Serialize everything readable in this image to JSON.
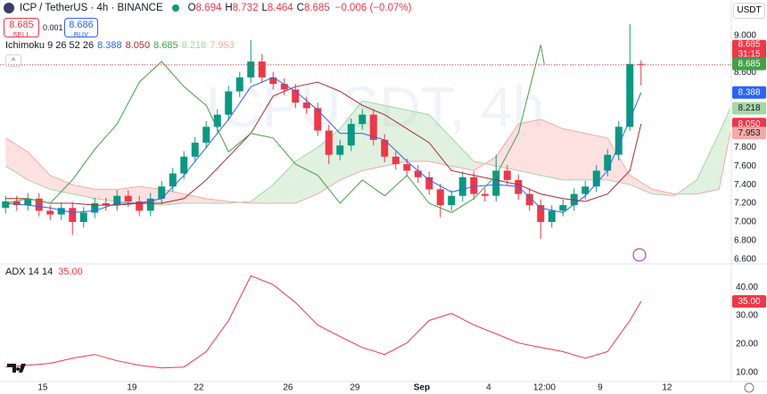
{
  "header": {
    "symbol": "ICP / TetherUS · 4h · BINANCE",
    "ohlc": [
      [
        "O",
        "8.694"
      ],
      [
        "H",
        "8.732"
      ],
      [
        "L",
        "8.464"
      ],
      [
        "C",
        "8.685"
      ]
    ],
    "change": "−0.006 (−0.07%)",
    "sell": {
      "price": "8.685",
      "label": "SELL"
    },
    "spread": "0.001",
    "buy": {
      "price": "8.686",
      "label": "BUY"
    },
    "currency": "USDT"
  },
  "chart_data": {
    "type": "candlestick",
    "watermark": "ICPUSDT, 4h",
    "up_color": "#089981",
    "down_color": "#f23645",
    "countdown": "31:15",
    "x": [
      -10,
      -7,
      -4,
      -1,
      2,
      5,
      8,
      11,
      14,
      17,
      20,
      23,
      26,
      29,
      32,
      35,
      38,
      41,
      44,
      47,
      50,
      53,
      56,
      59,
      62,
      65,
      68,
      71,
      74,
      77,
      80,
      83,
      86,
      89,
      92,
      95,
      98,
      101,
      104,
      107,
      110,
      113,
      116,
      119,
      122,
      125,
      128,
      131,
      134,
      137,
      140,
      143,
      146,
      149,
      152,
      155,
      158,
      161
    ],
    "open": [
      7.15,
      7.22,
      7.18,
      7.25,
      7.12,
      7.08,
      7.15,
      7.0,
      7.1,
      7.2,
      7.18,
      7.28,
      7.22,
      7.12,
      7.25,
      7.38,
      7.52,
      7.7,
      7.85,
      8.02,
      8.15,
      8.4,
      8.55,
      8.72,
      8.55,
      8.48,
      8.42,
      8.28,
      8.22,
      7.98,
      7.72,
      7.82,
      8.05,
      8.15,
      7.88,
      7.7,
      7.62,
      7.55,
      7.48,
      7.35,
      7.18,
      7.28,
      7.48,
      7.3,
      7.28,
      7.55,
      7.45,
      7.3,
      7.18,
      7.0,
      7.12,
      7.18,
      7.3,
      7.38,
      7.55,
      7.72,
      8.02,
      8.694
    ],
    "high": [
      7.28,
      7.28,
      7.31,
      7.31,
      7.18,
      7.21,
      7.21,
      7.16,
      7.26,
      7.26,
      7.34,
      7.34,
      7.28,
      7.31,
      7.44,
      7.58,
      7.76,
      7.91,
      8.08,
      8.21,
      8.46,
      8.61,
      8.95,
      8.8,
      8.61,
      8.54,
      8.48,
      8.34,
      8.28,
      8.04,
      7.88,
      8.11,
      8.21,
      8.21,
      7.94,
      7.76,
      7.68,
      7.61,
      7.54,
      7.41,
      7.34,
      7.54,
      7.54,
      7.36,
      7.72,
      7.61,
      7.51,
      7.36,
      7.24,
      7.18,
      7.24,
      7.36,
      7.44,
      7.61,
      7.78,
      8.08,
      9.12,
      8.732
    ],
    "low": [
      7.09,
      7.12,
      7.12,
      7.06,
      7.02,
      7.02,
      6.86,
      6.94,
      7.04,
      7.12,
      7.12,
      7.16,
      7.06,
      7.06,
      7.19,
      7.32,
      7.46,
      7.64,
      7.79,
      7.96,
      8.09,
      8.34,
      8.49,
      8.49,
      8.42,
      8.36,
      8.22,
      8.16,
      7.92,
      7.62,
      7.66,
      7.76,
      7.99,
      7.82,
      7.64,
      7.56,
      7.49,
      7.42,
      7.29,
      7.05,
      7.12,
      7.22,
      7.24,
      7.22,
      7.22,
      7.39,
      7.24,
      7.12,
      6.82,
      6.94,
      7.06,
      7.12,
      7.24,
      7.32,
      7.49,
      7.66,
      7.98,
      8.464
    ],
    "close": [
      7.22,
      7.18,
      7.25,
      7.12,
      7.08,
      7.15,
      7.0,
      7.1,
      7.2,
      7.18,
      7.28,
      7.22,
      7.12,
      7.25,
      7.38,
      7.52,
      7.7,
      7.85,
      8.02,
      8.15,
      8.4,
      8.55,
      8.72,
      8.55,
      8.48,
      8.42,
      8.28,
      8.22,
      7.98,
      7.72,
      7.82,
      8.05,
      8.15,
      7.88,
      7.7,
      7.62,
      7.55,
      7.48,
      7.35,
      7.18,
      7.28,
      7.48,
      7.3,
      7.28,
      7.55,
      7.45,
      7.3,
      7.18,
      7.0,
      7.12,
      7.18,
      7.3,
      7.38,
      7.55,
      7.72,
      8.02,
      8.694,
      8.685
    ],
    "xlim": [
      -11.5,
      185.3
    ],
    "xticks": [
      {
        "value": 0,
        "label": "15"
      },
      {
        "value": 24,
        "label": "19"
      },
      {
        "value": 42,
        "label": "22"
      },
      {
        "value": 66,
        "label": "26"
      },
      {
        "value": 84,
        "label": "29"
      },
      {
        "value": 102,
        "label": "Sep"
      },
      {
        "value": 120,
        "label": "4"
      },
      {
        "value": 135,
        "label": "12:00"
      },
      {
        "value": 150,
        "label": "9"
      },
      {
        "value": 168,
        "label": "12"
      }
    ],
    "ylim": [
      6.56,
      9.38
    ],
    "yticks": [
      {
        "value": 6.6,
        "label": "6.600"
      },
      {
        "value": 6.8,
        "label": "6.800"
      },
      {
        "value": 7.0,
        "label": "7.000"
      },
      {
        "value": 7.2,
        "label": "7.200"
      },
      {
        "value": 7.4,
        "label": "7.400"
      },
      {
        "value": 7.6,
        "label": "7.600"
      },
      {
        "value": 7.8,
        "label": "7.800"
      },
      {
        "value": 8.0,
        "label": "8.000"
      },
      {
        "value": 8.2,
        "label": "8.200"
      },
      {
        "value": 8.4,
        "label": "8.400"
      },
      {
        "value": 8.6,
        "label": "8.600"
      },
      {
        "value": 8.8,
        "label": "8.800"
      },
      {
        "value": 9.0,
        "label": "9.000"
      }
    ],
    "ichimoku": {
      "label": "Ichimoku 9 26 52 26",
      "lines": [
        {
          "color": "#2962ff",
          "label": "8.388",
          "x": [
            -10,
            -4,
            2,
            8,
            14,
            20,
            26,
            32,
            38,
            44,
            50,
            56,
            62,
            68,
            74,
            80,
            86,
            92,
            98,
            104,
            110,
            116,
            122,
            128,
            134,
            140,
            146,
            152,
            158,
            161
          ],
          "values": [
            7.2,
            7.18,
            7.15,
            7.1,
            7.12,
            7.2,
            7.2,
            7.25,
            7.5,
            7.8,
            8.1,
            8.45,
            8.55,
            8.4,
            8.2,
            7.95,
            7.95,
            7.88,
            7.65,
            7.45,
            7.32,
            7.38,
            7.4,
            7.38,
            7.15,
            7.1,
            7.28,
            7.55,
            8.1,
            8.388
          ]
        },
        {
          "color": "#b22833",
          "label": "8.050",
          "x": [
            -10,
            -4,
            2,
            8,
            14,
            20,
            26,
            32,
            38,
            44,
            50,
            56,
            62,
            68,
            74,
            80,
            86,
            92,
            98,
            104,
            110,
            116,
            122,
            128,
            134,
            140,
            146,
            152,
            158,
            161
          ],
          "values": [
            7.25,
            7.25,
            7.2,
            7.2,
            7.18,
            7.18,
            7.2,
            7.2,
            7.25,
            7.45,
            7.7,
            7.95,
            8.35,
            8.45,
            8.5,
            8.4,
            8.25,
            8.15,
            8.0,
            7.85,
            7.55,
            7.5,
            7.45,
            7.4,
            7.3,
            7.25,
            7.22,
            7.3,
            7.55,
            8.05
          ]
        },
        {
          "color": "#43a047",
          "label": "8.685",
          "x": [
            -10,
            -4,
            2,
            8,
            14,
            20,
            26,
            32,
            38,
            44,
            50,
            56,
            62,
            68,
            74,
            80,
            86,
            92,
            98,
            104,
            110,
            116,
            122,
            128,
            134,
            135
          ],
          "values": [
            7.2,
            7.25,
            7.2,
            7.45,
            7.78,
            8.05,
            8.5,
            8.72,
            8.45,
            8.25,
            7.75,
            7.95,
            7.9,
            7.62,
            7.5,
            7.2,
            7.45,
            7.28,
            7.5,
            7.2,
            7.1,
            7.25,
            7.5,
            7.95,
            8.9,
            8.685
          ]
        }
      ],
      "cloud": {
        "a_color": "#a5d6a7",
        "b_color": "#f7a9a7",
        "a_label": "8.218",
        "b_label": "7.953",
        "x": [
          -10,
          -4,
          2,
          8,
          14,
          20,
          26,
          32,
          38,
          44,
          50,
          56,
          62,
          68,
          74,
          80,
          86,
          92,
          98,
          104,
          110,
          116,
          122,
          128,
          134,
          140,
          146,
          152,
          158,
          164,
          170,
          176,
          182,
          185
        ],
        "span_a": [
          7.6,
          7.45,
          7.35,
          7.3,
          7.25,
          7.22,
          7.2,
          7.18,
          7.2,
          7.2,
          7.2,
          7.22,
          7.4,
          7.65,
          7.8,
          8.0,
          8.3,
          8.25,
          8.2,
          8.15,
          7.9,
          7.65,
          7.6,
          7.55,
          7.5,
          7.45,
          7.45,
          7.45,
          7.4,
          7.3,
          7.28,
          7.45,
          7.95,
          8.218
        ],
        "span_b": [
          7.9,
          7.75,
          7.5,
          7.4,
          7.35,
          7.35,
          7.38,
          7.35,
          7.3,
          7.25,
          7.22,
          7.2,
          7.2,
          7.2,
          7.3,
          7.45,
          7.55,
          7.6,
          7.65,
          7.65,
          7.6,
          7.55,
          7.7,
          8.05,
          8.1,
          8.0,
          7.95,
          7.9,
          7.5,
          7.35,
          7.3,
          7.3,
          7.35,
          7.953
        ]
      }
    },
    "adx": {
      "label": "ADX 14 14",
      "value_label": "35.00",
      "color": "#f23645",
      "ylim": [
        6.8,
        47.9
      ],
      "yticks": [
        {
          "value": 10,
          "label": "10.00"
        },
        {
          "value": 20,
          "label": "20.00"
        },
        {
          "value": 30,
          "label": "30.00"
        },
        {
          "value": 40,
          "label": "40.00"
        }
      ],
      "x": [
        -10,
        -4,
        2,
        8,
        14,
        20,
        26,
        32,
        38,
        44,
        50,
        56,
        62,
        68,
        74,
        80,
        86,
        92,
        98,
        104,
        110,
        116,
        122,
        128,
        134,
        140,
        146,
        152,
        158,
        161
      ],
      "values": [
        11.9,
        12.5,
        13.2,
        15.0,
        16.3,
        14.1,
        12.5,
        11.6,
        11.9,
        17.3,
        28.3,
        44.0,
        40.9,
        34.6,
        26.7,
        22.6,
        18.8,
        16.3,
        20.4,
        28.3,
        30.8,
        26.7,
        23.6,
        20.4,
        18.8,
        17.3,
        15.0,
        17.3,
        28.3,
        35
      ]
    }
  }
}
